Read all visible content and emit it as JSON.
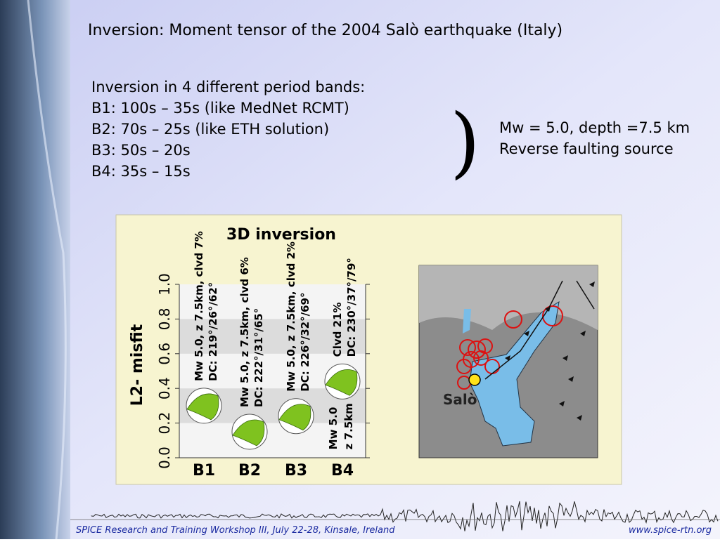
{
  "header": {
    "title": "Inversion: Moment tensor of the 2004 Salò earthquake (Italy)"
  },
  "body": {
    "lines": [
      "Inversion in 4 different period bands:",
      "B1: 100s – 35s (like MedNet RCMT)",
      "B2:  70s – 25s (like ETH solution)",
      "B3:  50s – 20s",
      "B4:  35s – 15s"
    ],
    "bracket": ")",
    "result": [
      "Mw = 5.0, depth =7.5 km",
      "Reverse faulting source"
    ]
  },
  "figure": {
    "title": "3D inversion",
    "ylabel": "L2- misfit",
    "categories": [
      "B1",
      "B2",
      "B3",
      "B4"
    ],
    "values": [
      0.3,
      0.15,
      0.24,
      0.44
    ],
    "ylim": [
      0,
      1
    ],
    "yticks": [
      {
        "value": 0,
        "label": "0.0"
      },
      {
        "value": 0.2,
        "label": "0.2"
      },
      {
        "value": 0.4,
        "label": "0.4"
      },
      {
        "value": 0.6,
        "label": "0.6"
      },
      {
        "value": 0.8,
        "label": "0.8"
      },
      {
        "value": 1,
        "label": "1.0"
      }
    ],
    "annotations": [
      {
        "above": [
          "Mw 5.0, z 7.5km, clvd 7%",
          "DC: 219°/26°/62°"
        ]
      },
      {
        "above": [
          "Mw 5.0, z 7.5km, clvd 6%",
          "DC: 222°/31°/65°"
        ]
      },
      {
        "above": [
          "Mw 5.0, z 7.5km, clvd 2%",
          "DC: 226°/32°/69°"
        ]
      },
      {
        "above": [
          "Clvd 21%",
          "DC: 230°/37°/79°"
        ],
        "below": [
          "Mw 5.0",
          "z 7.5km"
        ]
      }
    ],
    "map_label": "Salò"
  },
  "footer": {
    "left": "SPICE Research and Training Workshop III, July 22-28, Kinsale, Ireland",
    "right": "www.spice-rtn.org"
  }
}
